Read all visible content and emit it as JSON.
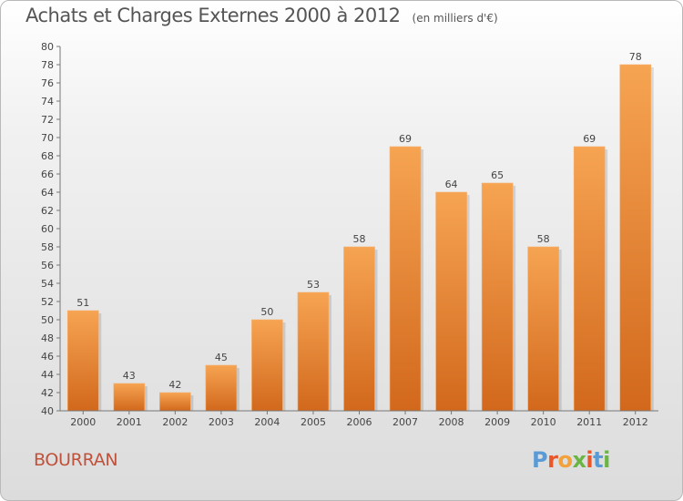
{
  "header": {
    "title": "Achats et Charges Externes 2000 à 2012",
    "unit": "(en milliers d'€)"
  },
  "footer": {
    "commune": "BOURRAN",
    "logo_text": "Proxiti",
    "logo_colors": [
      "#5b9bd5",
      "#e8562a",
      "#f2a13b",
      "#6bb544",
      "#e8562a",
      "#5b9bd5",
      "#6bb544"
    ]
  },
  "chart_data": {
    "type": "bar",
    "title": "Achats et Charges Externes 2000 à 2012",
    "subtitle": "(en milliers d'€)",
    "xlabel": "",
    "ylabel": "",
    "categories": [
      "2000",
      "2001",
      "2002",
      "2003",
      "2004",
      "2005",
      "2006",
      "2007",
      "2008",
      "2009",
      "2010",
      "2011",
      "2012"
    ],
    "values": [
      51,
      43,
      42,
      45,
      50,
      53,
      58,
      69,
      64,
      65,
      58,
      69,
      78
    ],
    "ylim": [
      40,
      80
    ],
    "yticks": [
      40,
      42,
      44,
      46,
      48,
      50,
      52,
      54,
      56,
      58,
      60,
      62,
      64,
      66,
      68,
      70,
      72,
      74,
      76,
      78,
      80
    ],
    "grid": false,
    "legend": "none",
    "colors": {
      "bar_top": "#f6a452",
      "bar_bottom": "#d2681c",
      "axis": "#777777",
      "text": "#444444"
    }
  }
}
